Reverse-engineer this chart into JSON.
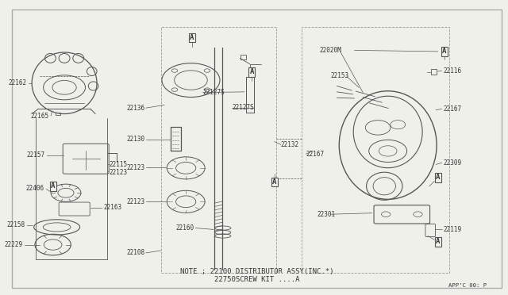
{
  "bg_color": "#f0f0eb",
  "line_color": "#555555",
  "text_color": "#333333",
  "border_color": "#888888",
  "title_note": "NOTE ; 22100 DISTRIBUTOR ASSY(INC.*)",
  "title_note2": "22750SCREW KIT ....A",
  "page_ref": "APP'C 00: P",
  "fig_width": 6.4,
  "fig_height": 3.72,
  "dpi": 100
}
